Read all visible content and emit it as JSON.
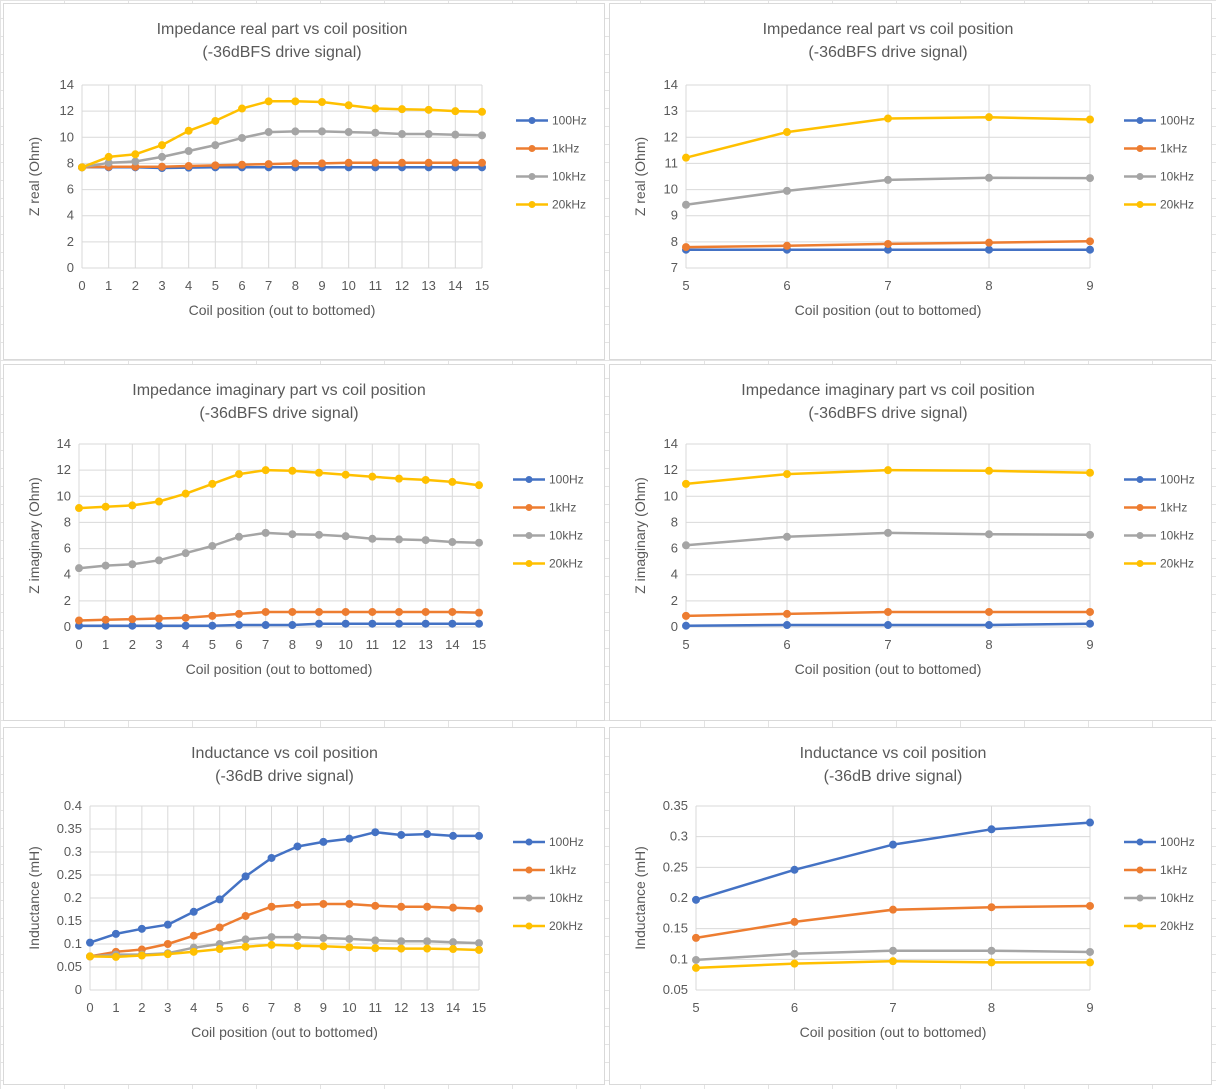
{
  "chart_data": [
    {
      "type": "line",
      "title": "Impedance real part vs coil position",
      "subtitle": "(-36dBFS drive signal)",
      "xlabel": "Coil position (out to bottomed)",
      "ylabel": "Z real (Ohm)",
      "x": [
        "0",
        "1",
        "2",
        "3",
        "4",
        "5",
        "6",
        "7",
        "8",
        "9",
        "10",
        "11",
        "12",
        "13",
        "14",
        "15"
      ],
      "xticks": [
        "0",
        "1",
        "2",
        "3",
        "4",
        "5",
        "6",
        "7",
        "8",
        "9",
        "10",
        "11",
        "12",
        "13",
        "14",
        "15"
      ],
      "yticks": [
        "0",
        "2",
        "4",
        "6",
        "8",
        "10",
        "12",
        "14"
      ],
      "ylim": [
        0,
        14
      ],
      "grid": true,
      "legend_position": "right",
      "series": [
        {
          "name": "100Hz",
          "color": "#4472c4",
          "values": [
            7.7,
            7.7,
            7.7,
            7.65,
            7.68,
            7.7,
            7.7,
            7.7,
            7.7,
            7.7,
            7.7,
            7.7,
            7.7,
            7.7,
            7.7,
            7.7
          ]
        },
        {
          "name": "1kHz",
          "color": "#ed7d31",
          "values": [
            7.7,
            7.75,
            7.75,
            7.75,
            7.8,
            7.85,
            7.9,
            7.95,
            8.0,
            8.0,
            8.05,
            8.05,
            8.05,
            8.05,
            8.05,
            8.05
          ]
        },
        {
          "name": "10kHz",
          "color": "#a5a5a5",
          "values": [
            7.7,
            8.05,
            8.15,
            8.5,
            8.95,
            9.4,
            9.95,
            10.4,
            10.45,
            10.45,
            10.4,
            10.35,
            10.25,
            10.25,
            10.2,
            10.15
          ]
        },
        {
          "name": "20kHz",
          "color": "#ffc000",
          "values": [
            7.7,
            8.5,
            8.7,
            9.4,
            10.5,
            11.25,
            12.2,
            12.75,
            12.75,
            12.7,
            12.45,
            12.2,
            12.15,
            12.1,
            12.0,
            11.95
          ]
        }
      ]
    },
    {
      "type": "line",
      "title": "Impedance real part vs coil position",
      "subtitle": "(-36dBFS drive signal)",
      "xlabel": "Coil position (out to bottomed)",
      "ylabel": "Z real (Ohm)",
      "x": [
        "5",
        "6",
        "7",
        "8",
        "9"
      ],
      "xticks": [
        "5",
        "6",
        "7",
        "8",
        "9"
      ],
      "yticks": [
        "7",
        "8",
        "9",
        "10",
        "11",
        "12",
        "13",
        "14"
      ],
      "ylim": [
        7,
        14
      ],
      "grid": true,
      "legend_position": "right",
      "series": [
        {
          "name": "100Hz",
          "color": "#4472c4",
          "values": [
            7.7,
            7.7,
            7.7,
            7.7,
            7.7
          ]
        },
        {
          "name": "1kHz",
          "color": "#ed7d31",
          "values": [
            7.8,
            7.85,
            7.92,
            7.97,
            8.02
          ]
        },
        {
          "name": "10kHz",
          "color": "#a5a5a5",
          "values": [
            9.42,
            9.95,
            10.37,
            10.45,
            10.44
          ]
        },
        {
          "name": "20kHz",
          "color": "#ffc000",
          "values": [
            11.22,
            12.2,
            12.72,
            12.77,
            12.68
          ]
        }
      ]
    },
    {
      "type": "line",
      "title": "Impedance imaginary part vs coil position",
      "subtitle": "(-36dBFS drive signal)",
      "xlabel": "Coil position (out to bottomed)",
      "ylabel": "Z imaginary (Ohm)",
      "x": [
        "0",
        "1",
        "2",
        "3",
        "4",
        "5",
        "6",
        "7",
        "8",
        "9",
        "10",
        "11",
        "12",
        "13",
        "14",
        "15"
      ],
      "xticks": [
        "0",
        "1",
        "2",
        "3",
        "4",
        "5",
        "6",
        "7",
        "8",
        "9",
        "10",
        "11",
        "12",
        "13",
        "14",
        "15"
      ],
      "yticks": [
        "0",
        "2",
        "4",
        "6",
        "8",
        "10",
        "12",
        "14"
      ],
      "ylim": [
        0,
        14
      ],
      "grid": true,
      "legend_position": "right",
      "series": [
        {
          "name": "100Hz",
          "color": "#4472c4",
          "values": [
            0.1,
            0.1,
            0.1,
            0.1,
            0.1,
            0.1,
            0.15,
            0.15,
            0.15,
            0.25,
            0.25,
            0.25,
            0.25,
            0.25,
            0.25,
            0.25
          ]
        },
        {
          "name": "1kHz",
          "color": "#ed7d31",
          "values": [
            0.5,
            0.55,
            0.6,
            0.65,
            0.7,
            0.85,
            1.0,
            1.15,
            1.15,
            1.15,
            1.15,
            1.15,
            1.15,
            1.15,
            1.15,
            1.1
          ]
        },
        {
          "name": "10kHz",
          "color": "#a5a5a5",
          "values": [
            4.5,
            4.7,
            4.8,
            5.1,
            5.65,
            6.2,
            6.9,
            7.2,
            7.1,
            7.05,
            6.95,
            6.75,
            6.7,
            6.65,
            6.5,
            6.45
          ]
        },
        {
          "name": "20kHz",
          "color": "#ffc000",
          "values": [
            9.1,
            9.2,
            9.3,
            9.6,
            10.2,
            10.95,
            11.7,
            12.0,
            11.95,
            11.8,
            11.65,
            11.5,
            11.35,
            11.25,
            11.1,
            10.85
          ]
        }
      ]
    },
    {
      "type": "line",
      "title": "Impedance imaginary part vs coil position",
      "subtitle": "(-36dBFS drive signal)",
      "xlabel": "Coil position (out to bottomed)",
      "ylabel": "Z imaginary (Ohm)",
      "x": [
        "5",
        "6",
        "7",
        "8",
        "9"
      ],
      "xticks": [
        "5",
        "6",
        "7",
        "8",
        "9"
      ],
      "yticks": [
        "0",
        "2",
        "4",
        "6",
        "8",
        "10",
        "12",
        "14"
      ],
      "ylim": [
        0,
        14
      ],
      "grid": true,
      "legend_position": "right",
      "series": [
        {
          "name": "100Hz",
          "color": "#4472c4",
          "values": [
            0.1,
            0.15,
            0.15,
            0.15,
            0.25
          ]
        },
        {
          "name": "1kHz",
          "color": "#ed7d31",
          "values": [
            0.85,
            1.0,
            1.15,
            1.15,
            1.15
          ]
        },
        {
          "name": "10kHz",
          "color": "#a5a5a5",
          "values": [
            6.25,
            6.9,
            7.2,
            7.1,
            7.05
          ]
        },
        {
          "name": "20kHz",
          "color": "#ffc000",
          "values": [
            10.95,
            11.7,
            12.0,
            11.95,
            11.8
          ]
        }
      ]
    },
    {
      "type": "line",
      "title": "Inductance vs coil position",
      "subtitle": "(-36dB drive signal)",
      "xlabel": "Coil position (out to bottomed)",
      "ylabel": "Inductance (mH)",
      "x": [
        "0",
        "1",
        "2",
        "3",
        "4",
        "5",
        "6",
        "7",
        "8",
        "9",
        "10",
        "11",
        "12",
        "13",
        "14",
        "15"
      ],
      "xticks": [
        "0",
        "1",
        "2",
        "3",
        "4",
        "5",
        "6",
        "7",
        "8",
        "9",
        "10",
        "11",
        "12",
        "13",
        "14",
        "15"
      ],
      "yticks": [
        "0",
        "0.05",
        "0.1",
        "0.15",
        "0.2",
        "0.25",
        "0.3",
        "0.35",
        "0.4"
      ],
      "ylim": [
        0,
        0.4
      ],
      "grid": true,
      "legend_position": "right",
      "series": [
        {
          "name": "100Hz",
          "color": "#4472c4",
          "values": [
            0.103,
            0.122,
            0.133,
            0.142,
            0.17,
            0.197,
            0.247,
            0.287,
            0.312,
            0.322,
            0.329,
            0.343,
            0.337,
            0.339,
            0.335,
            0.335
          ]
        },
        {
          "name": "1kHz",
          "color": "#ed7d31",
          "values": [
            0.073,
            0.083,
            0.088,
            0.1,
            0.118,
            0.136,
            0.161,
            0.181,
            0.185,
            0.187,
            0.187,
            0.183,
            0.181,
            0.181,
            0.179,
            0.177
          ]
        },
        {
          "name": "10kHz",
          "color": "#a5a5a5",
          "values": [
            0.073,
            0.077,
            0.077,
            0.08,
            0.092,
            0.1,
            0.11,
            0.115,
            0.115,
            0.113,
            0.111,
            0.108,
            0.106,
            0.106,
            0.104,
            0.102
          ]
        },
        {
          "name": "20kHz",
          "color": "#ffc000",
          "values": [
            0.073,
            0.072,
            0.075,
            0.078,
            0.083,
            0.089,
            0.094,
            0.098,
            0.096,
            0.095,
            0.093,
            0.091,
            0.09,
            0.09,
            0.089,
            0.087
          ]
        }
      ]
    },
    {
      "type": "line",
      "title": "Inductance vs coil position",
      "subtitle": "(-36dB drive signal)",
      "xlabel": "Coil position (out to bottomed)",
      "ylabel": "Inductance (mH)",
      "x": [
        "5",
        "6",
        "7",
        "8",
        "9"
      ],
      "xticks": [
        "5",
        "6",
        "7",
        "8",
        "9"
      ],
      "yticks": [
        "0.05",
        "0.1",
        "0.15",
        "0.2",
        "0.25",
        "0.3",
        "0.35"
      ],
      "ylim": [
        0.05,
        0.35
      ],
      "grid": true,
      "legend_position": "right",
      "series": [
        {
          "name": "100Hz",
          "color": "#4472c4",
          "values": [
            0.197,
            0.246,
            0.287,
            0.312,
            0.323
          ]
        },
        {
          "name": "1kHz",
          "color": "#ed7d31",
          "values": [
            0.135,
            0.161,
            0.181,
            0.185,
            0.187
          ]
        },
        {
          "name": "10kHz",
          "color": "#a5a5a5",
          "values": [
            0.099,
            0.109,
            0.114,
            0.114,
            0.112
          ]
        },
        {
          "name": "20kHz",
          "color": "#ffc000",
          "values": [
            0.086,
            0.093,
            0.097,
            0.095,
            0.095
          ]
        }
      ]
    }
  ]
}
